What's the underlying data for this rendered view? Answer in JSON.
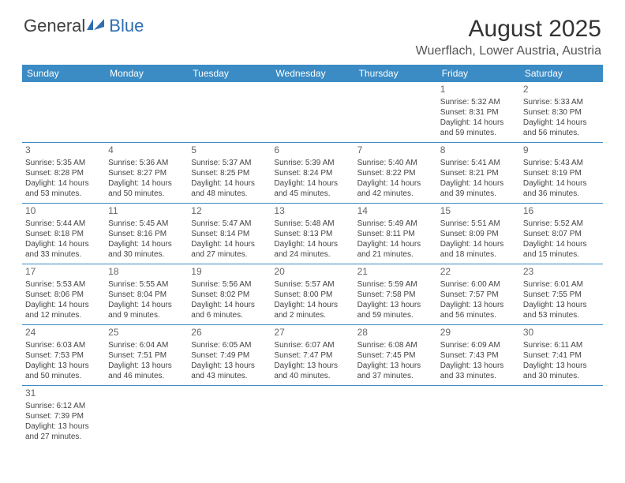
{
  "brand": {
    "prefix": "General",
    "suffix": "Blue"
  },
  "title": "August 2025",
  "subtitle": "Wuerflach, Lower Austria, Austria",
  "colors": {
    "header_bg": "#3b8bc4",
    "header_text": "#ffffff",
    "row_border": "#3b8bc4",
    "text": "#444444",
    "logo_blue": "#2f6fb0"
  },
  "dow": [
    "Sunday",
    "Monday",
    "Tuesday",
    "Wednesday",
    "Thursday",
    "Friday",
    "Saturday"
  ],
  "weeks": [
    [
      null,
      null,
      null,
      null,
      null,
      {
        "n": "1",
        "sr": "5:32 AM",
        "ss": "8:31 PM",
        "dl": "14 hours and 59 minutes."
      },
      {
        "n": "2",
        "sr": "5:33 AM",
        "ss": "8:30 PM",
        "dl": "14 hours and 56 minutes."
      }
    ],
    [
      {
        "n": "3",
        "sr": "5:35 AM",
        "ss": "8:28 PM",
        "dl": "14 hours and 53 minutes."
      },
      {
        "n": "4",
        "sr": "5:36 AM",
        "ss": "8:27 PM",
        "dl": "14 hours and 50 minutes."
      },
      {
        "n": "5",
        "sr": "5:37 AM",
        "ss": "8:25 PM",
        "dl": "14 hours and 48 minutes."
      },
      {
        "n": "6",
        "sr": "5:39 AM",
        "ss": "8:24 PM",
        "dl": "14 hours and 45 minutes."
      },
      {
        "n": "7",
        "sr": "5:40 AM",
        "ss": "8:22 PM",
        "dl": "14 hours and 42 minutes."
      },
      {
        "n": "8",
        "sr": "5:41 AM",
        "ss": "8:21 PM",
        "dl": "14 hours and 39 minutes."
      },
      {
        "n": "9",
        "sr": "5:43 AM",
        "ss": "8:19 PM",
        "dl": "14 hours and 36 minutes."
      }
    ],
    [
      {
        "n": "10",
        "sr": "5:44 AM",
        "ss": "8:18 PM",
        "dl": "14 hours and 33 minutes."
      },
      {
        "n": "11",
        "sr": "5:45 AM",
        "ss": "8:16 PM",
        "dl": "14 hours and 30 minutes."
      },
      {
        "n": "12",
        "sr": "5:47 AM",
        "ss": "8:14 PM",
        "dl": "14 hours and 27 minutes."
      },
      {
        "n": "13",
        "sr": "5:48 AM",
        "ss": "8:13 PM",
        "dl": "14 hours and 24 minutes."
      },
      {
        "n": "14",
        "sr": "5:49 AM",
        "ss": "8:11 PM",
        "dl": "14 hours and 21 minutes."
      },
      {
        "n": "15",
        "sr": "5:51 AM",
        "ss": "8:09 PM",
        "dl": "14 hours and 18 minutes."
      },
      {
        "n": "16",
        "sr": "5:52 AM",
        "ss": "8:07 PM",
        "dl": "14 hours and 15 minutes."
      }
    ],
    [
      {
        "n": "17",
        "sr": "5:53 AM",
        "ss": "8:06 PM",
        "dl": "14 hours and 12 minutes."
      },
      {
        "n": "18",
        "sr": "5:55 AM",
        "ss": "8:04 PM",
        "dl": "14 hours and 9 minutes."
      },
      {
        "n": "19",
        "sr": "5:56 AM",
        "ss": "8:02 PM",
        "dl": "14 hours and 6 minutes."
      },
      {
        "n": "20",
        "sr": "5:57 AM",
        "ss": "8:00 PM",
        "dl": "14 hours and 2 minutes."
      },
      {
        "n": "21",
        "sr": "5:59 AM",
        "ss": "7:58 PM",
        "dl": "13 hours and 59 minutes."
      },
      {
        "n": "22",
        "sr": "6:00 AM",
        "ss": "7:57 PM",
        "dl": "13 hours and 56 minutes."
      },
      {
        "n": "23",
        "sr": "6:01 AM",
        "ss": "7:55 PM",
        "dl": "13 hours and 53 minutes."
      }
    ],
    [
      {
        "n": "24",
        "sr": "6:03 AM",
        "ss": "7:53 PM",
        "dl": "13 hours and 50 minutes."
      },
      {
        "n": "25",
        "sr": "6:04 AM",
        "ss": "7:51 PM",
        "dl": "13 hours and 46 minutes."
      },
      {
        "n": "26",
        "sr": "6:05 AM",
        "ss": "7:49 PM",
        "dl": "13 hours and 43 minutes."
      },
      {
        "n": "27",
        "sr": "6:07 AM",
        "ss": "7:47 PM",
        "dl": "13 hours and 40 minutes."
      },
      {
        "n": "28",
        "sr": "6:08 AM",
        "ss": "7:45 PM",
        "dl": "13 hours and 37 minutes."
      },
      {
        "n": "29",
        "sr": "6:09 AM",
        "ss": "7:43 PM",
        "dl": "13 hours and 33 minutes."
      },
      {
        "n": "30",
        "sr": "6:11 AM",
        "ss": "7:41 PM",
        "dl": "13 hours and 30 minutes."
      }
    ],
    [
      {
        "n": "31",
        "sr": "6:12 AM",
        "ss": "7:39 PM",
        "dl": "13 hours and 27 minutes."
      },
      null,
      null,
      null,
      null,
      null,
      null
    ]
  ],
  "labels": {
    "sunrise": "Sunrise:",
    "sunset": "Sunset:",
    "daylight": "Daylight:"
  }
}
